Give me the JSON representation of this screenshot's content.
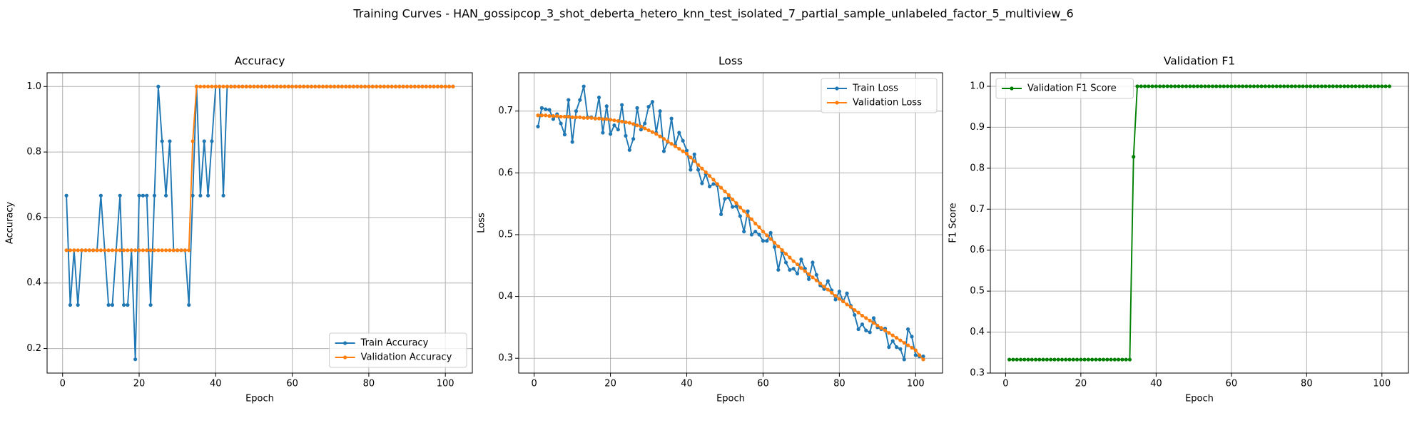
{
  "title": "Training Curves - HAN_gossipcop_3_shot_deberta_hetero_knn_test_isolated_7_partial_sample_unlabeled_factor_5_multiview_6",
  "chart_data": [
    {
      "type": "line",
      "title": "Accuracy",
      "xlabel": "Epoch",
      "ylabel": "Accuracy",
      "x": [
        1,
        2,
        3,
        4,
        5,
        6,
        7,
        8,
        9,
        10,
        11,
        12,
        13,
        14,
        15,
        16,
        17,
        18,
        19,
        20,
        21,
        22,
        23,
        24,
        25,
        26,
        27,
        28,
        29,
        30,
        31,
        32,
        33,
        34,
        35,
        36,
        37,
        38,
        39,
        40,
        41,
        42,
        43,
        44,
        45,
        46,
        47,
        48,
        49,
        50,
        51,
        52,
        53,
        54,
        55,
        56,
        57,
        58,
        59,
        60,
        61,
        62,
        63,
        64,
        65,
        66,
        67,
        68,
        69,
        70,
        71,
        72,
        73,
        74,
        75,
        76,
        77,
        78,
        79,
        80,
        81,
        82,
        83,
        84,
        85,
        86,
        87,
        88,
        89,
        90,
        91,
        92,
        93,
        94,
        95,
        96,
        97,
        98,
        99,
        100,
        101,
        102
      ],
      "series": [
        {
          "name": "Train Accuracy",
          "color": "#1f77b4",
          "values": [
            0.667,
            0.333,
            0.5,
            0.333,
            0.5,
            0.5,
            0.5,
            0.5,
            0.5,
            0.667,
            0.5,
            0.333,
            0.333,
            0.5,
            0.667,
            0.333,
            0.333,
            0.5,
            0.167,
            0.667,
            0.667,
            0.667,
            0.333,
            0.667,
            1,
            0.833,
            0.667,
            0.833,
            0.5,
            0.5,
            0.5,
            0.5,
            0.333,
            0.667,
            1,
            0.667,
            0.833,
            0.667,
            0.833,
            1,
            1,
            0.667,
            1,
            1,
            1,
            1,
            1,
            1,
            1,
            1,
            1,
            1,
            1,
            1,
            1,
            1,
            1,
            1,
            1,
            1,
            1,
            1,
            1,
            1,
            1,
            1,
            1,
            1,
            1,
            1,
            1,
            1,
            1,
            1,
            1,
            1,
            1,
            1,
            1,
            1,
            1,
            1,
            1,
            1,
            1,
            1,
            1,
            1,
            1,
            1,
            1,
            1,
            1,
            1,
            1,
            1,
            1,
            1,
            1,
            1,
            1,
            1
          ]
        },
        {
          "name": "Validation Accuracy",
          "color": "#ff7f0e",
          "values": [
            0.5,
            0.5,
            0.5,
            0.5,
            0.5,
            0.5,
            0.5,
            0.5,
            0.5,
            0.5,
            0.5,
            0.5,
            0.5,
            0.5,
            0.5,
            0.5,
            0.5,
            0.5,
            0.5,
            0.5,
            0.5,
            0.5,
            0.5,
            0.5,
            0.5,
            0.5,
            0.5,
            0.5,
            0.5,
            0.5,
            0.5,
            0.5,
            0.5,
            0.833,
            1,
            1,
            1,
            1,
            1,
            1,
            1,
            1,
            1,
            1,
            1,
            1,
            1,
            1,
            1,
            1,
            1,
            1,
            1,
            1,
            1,
            1,
            1,
            1,
            1,
            1,
            1,
            1,
            1,
            1,
            1,
            1,
            1,
            1,
            1,
            1,
            1,
            1,
            1,
            1,
            1,
            1,
            1,
            1,
            1,
            1,
            1,
            1,
            1,
            1,
            1,
            1,
            1,
            1,
            1,
            1,
            1,
            1,
            1,
            1,
            1,
            1,
            1,
            1,
            1,
            1,
            1,
            1
          ]
        }
      ],
      "xlim": [
        -4.05,
        107.05
      ],
      "ylim": [
        0.125,
        1.042
      ],
      "xticks": [
        0,
        20,
        40,
        60,
        80,
        100
      ],
      "yticks": [
        0.2,
        0.4,
        0.6,
        0.8,
        {
          "value": 1,
          "label": "1.0"
        }
      ],
      "grid": true,
      "legend": "lower right"
    },
    {
      "type": "line",
      "title": "Loss",
      "xlabel": "Epoch",
      "ylabel": "Loss",
      "x": [
        1,
        2,
        3,
        4,
        5,
        6,
        7,
        8,
        9,
        10,
        11,
        12,
        13,
        14,
        15,
        16,
        17,
        18,
        19,
        20,
        21,
        22,
        23,
        24,
        25,
        26,
        27,
        28,
        29,
        30,
        31,
        32,
        33,
        34,
        35,
        36,
        37,
        38,
        39,
        40,
        41,
        42,
        43,
        44,
        45,
        46,
        47,
        48,
        49,
        50,
        51,
        52,
        53,
        54,
        55,
        56,
        57,
        58,
        59,
        60,
        61,
        62,
        63,
        64,
        65,
        66,
        67,
        68,
        69,
        70,
        71,
        72,
        73,
        74,
        75,
        76,
        77,
        78,
        79,
        80,
        81,
        82,
        83,
        84,
        85,
        86,
        87,
        88,
        89,
        90,
        91,
        92,
        93,
        94,
        95,
        96,
        97,
        98,
        99,
        100,
        101,
        102
      ],
      "series": [
        {
          "name": "Train Loss",
          "color": "#1f77b4",
          "values": [
            0.675,
            0.705,
            0.703,
            0.702,
            0.687,
            0.695,
            0.68,
            0.662,
            0.718,
            0.65,
            0.7,
            0.718,
            0.74,
            0.69,
            0.69,
            0.688,
            0.722,
            0.665,
            0.708,
            0.663,
            0.677,
            0.67,
            0.71,
            0.66,
            0.637,
            0.655,
            0.705,
            0.67,
            0.68,
            0.707,
            0.715,
            0.665,
            0.7,
            0.635,
            0.65,
            0.688,
            0.645,
            0.665,
            0.652,
            0.636,
            0.605,
            0.63,
            0.605,
            0.583,
            0.598,
            0.578,
            0.582,
            0.58,
            0.533,
            0.558,
            0.56,
            0.545,
            0.546,
            0.53,
            0.505,
            0.538,
            0.5,
            0.505,
            0.5,
            0.49,
            0.49,
            0.503,
            0.48,
            0.443,
            0.472,
            0.455,
            0.443,
            0.445,
            0.437,
            0.46,
            0.445,
            0.428,
            0.455,
            0.435,
            0.418,
            0.412,
            0.425,
            0.41,
            0.395,
            0.408,
            0.392,
            0.405,
            0.385,
            0.37,
            0.347,
            0.355,
            0.345,
            0.342,
            0.365,
            0.35,
            0.347,
            0.348,
            0.318,
            0.328,
            0.318,
            0.315,
            0.298,
            0.347,
            0.335,
            0.305,
            0.303,
            0.303
          ]
        },
        {
          "name": "Validation Loss",
          "color": "#ff7f0e",
          "values": [
            0.693,
            0.693,
            0.693,
            0.692,
            0.692,
            0.692,
            0.691,
            0.691,
            0.691,
            0.69,
            0.69,
            0.69,
            0.689,
            0.689,
            0.689,
            0.688,
            0.688,
            0.687,
            0.687,
            0.686,
            0.685,
            0.684,
            0.683,
            0.682,
            0.681,
            0.679,
            0.677,
            0.675,
            0.672,
            0.669,
            0.666,
            0.663,
            0.659,
            0.655,
            0.651,
            0.647,
            0.643,
            0.639,
            0.635,
            0.631,
            0.625,
            0.619,
            0.613,
            0.607,
            0.601,
            0.595,
            0.589,
            0.582,
            0.576,
            0.57,
            0.564,
            0.557,
            0.551,
            0.544,
            0.538,
            0.531,
            0.525,
            0.518,
            0.512,
            0.505,
            0.499,
            0.493,
            0.487,
            0.481,
            0.475,
            0.469,
            0.463,
            0.457,
            0.452,
            0.446,
            0.441,
            0.436,
            0.431,
            0.426,
            0.421,
            0.416,
            0.411,
            0.406,
            0.401,
            0.396,
            0.392,
            0.387,
            0.383,
            0.378,
            0.374,
            0.369,
            0.365,
            0.361,
            0.357,
            0.353,
            0.349,
            0.345,
            0.341,
            0.337,
            0.333,
            0.329,
            0.325,
            0.321,
            0.317,
            0.313,
            0.305,
            0.298
          ]
        }
      ],
      "xlim": [
        -4.05,
        107.05
      ],
      "ylim": [
        0.276,
        0.762
      ],
      "xticks": [
        0,
        20,
        40,
        60,
        80,
        100
      ],
      "yticks": [
        0.3,
        0.4,
        0.5,
        0.6,
        0.7
      ],
      "grid": true,
      "legend": "upper right"
    },
    {
      "type": "line",
      "title": "Validation F1",
      "xlabel": "Epoch",
      "ylabel": "F1 Score",
      "x": [
        1,
        2,
        3,
        4,
        5,
        6,
        7,
        8,
        9,
        10,
        11,
        12,
        13,
        14,
        15,
        16,
        17,
        18,
        19,
        20,
        21,
        22,
        23,
        24,
        25,
        26,
        27,
        28,
        29,
        30,
        31,
        32,
        33,
        34,
        35,
        36,
        37,
        38,
        39,
        40,
        41,
        42,
        43,
        44,
        45,
        46,
        47,
        48,
        49,
        50,
        51,
        52,
        53,
        54,
        55,
        56,
        57,
        58,
        59,
        60,
        61,
        62,
        63,
        64,
        65,
        66,
        67,
        68,
        69,
        70,
        71,
        72,
        73,
        74,
        75,
        76,
        77,
        78,
        79,
        80,
        81,
        82,
        83,
        84,
        85,
        86,
        87,
        88,
        89,
        90,
        91,
        92,
        93,
        94,
        95,
        96,
        97,
        98,
        99,
        100,
        101,
        102
      ],
      "series": [
        {
          "name": "Validation F1 Score",
          "color": "#008000",
          "values": [
            0.333,
            0.333,
            0.333,
            0.333,
            0.333,
            0.333,
            0.333,
            0.333,
            0.333,
            0.333,
            0.333,
            0.333,
            0.333,
            0.333,
            0.333,
            0.333,
            0.333,
            0.333,
            0.333,
            0.333,
            0.333,
            0.333,
            0.333,
            0.333,
            0.333,
            0.333,
            0.333,
            0.333,
            0.333,
            0.333,
            0.333,
            0.333,
            0.333,
            0.828,
            1,
            1,
            1,
            1,
            1,
            1,
            1,
            1,
            1,
            1,
            1,
            1,
            1,
            1,
            1,
            1,
            1,
            1,
            1,
            1,
            1,
            1,
            1,
            1,
            1,
            1,
            1,
            1,
            1,
            1,
            1,
            1,
            1,
            1,
            1,
            1,
            1,
            1,
            1,
            1,
            1,
            1,
            1,
            1,
            1,
            1,
            1,
            1,
            1,
            1,
            1,
            1,
            1,
            1,
            1,
            1,
            1,
            1,
            1,
            1,
            1,
            1,
            1,
            1,
            1,
            1,
            1,
            1
          ]
        }
      ],
      "xlim": [
        -4.05,
        107.05
      ],
      "ylim": [
        0.3,
        1.033
      ],
      "xticks": [
        0,
        20,
        40,
        60,
        80,
        100
      ],
      "yticks": [
        0.3,
        0.4,
        0.5,
        0.6,
        0.7,
        0.8,
        0.9,
        {
          "value": 1,
          "label": "1.0"
        }
      ],
      "grid": true,
      "legend": "upper left"
    }
  ]
}
